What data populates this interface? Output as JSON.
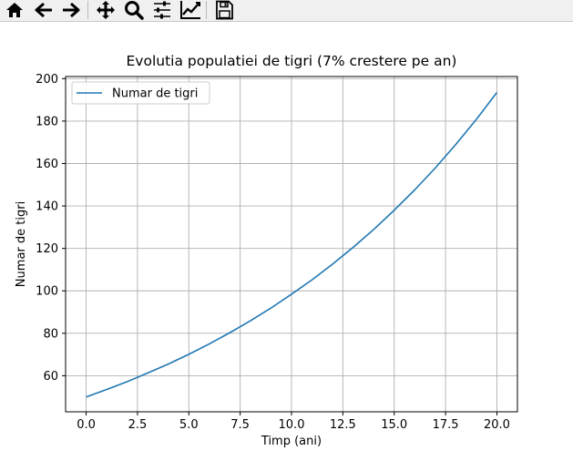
{
  "toolbar": {
    "buttons": [
      {
        "name": "home-icon",
        "label": "Home"
      },
      {
        "name": "back-icon",
        "label": "Back"
      },
      {
        "name": "forward-icon",
        "label": "Forward"
      },
      {
        "name": "pan-icon",
        "label": "Pan"
      },
      {
        "name": "zoom-icon",
        "label": "Zoom"
      },
      {
        "name": "configure-subplots-icon",
        "label": "Configure subplots"
      },
      {
        "name": "edit-axis-icon",
        "label": "Edit axis"
      },
      {
        "name": "save-icon",
        "label": "Save"
      }
    ]
  },
  "chart_data": {
    "type": "line",
    "title": "Evolutia populatiei de tigri (7% crestere pe an)",
    "xlabel": "Timp (ani)",
    "ylabel": "Numar de tigri",
    "xlim": [
      -1.0,
      21.0
    ],
    "ylim": [
      43,
      201
    ],
    "xticks": [
      0.0,
      2.5,
      5.0,
      7.5,
      10.0,
      12.5,
      15.0,
      17.5,
      20.0
    ],
    "xtick_labels": [
      "0.0",
      "2.5",
      "5.0",
      "7.5",
      "10.0",
      "12.5",
      "15.0",
      "17.5",
      "20.0"
    ],
    "yticks": [
      60,
      80,
      100,
      120,
      140,
      160,
      180,
      200
    ],
    "ytick_labels": [
      "60",
      "80",
      "100",
      "120",
      "140",
      "160",
      "180",
      "200"
    ],
    "grid": true,
    "legend": "upper-left",
    "colors": {
      "line": "#1f77b4",
      "grid": "#b0b0b0",
      "axis": "#000000"
    },
    "series": [
      {
        "name": "Numar de tigri",
        "x": [
          0,
          1,
          2,
          3,
          4,
          5,
          6,
          7,
          8,
          9,
          10,
          11,
          12,
          13,
          14,
          15,
          16,
          17,
          18,
          19,
          20
        ],
        "y": [
          50.0,
          53.5,
          57.2,
          61.3,
          65.5,
          70.1,
          75.0,
          80.3,
          85.9,
          91.9,
          98.4,
          105.2,
          112.6,
          120.5,
          128.9,
          138.0,
          147.6,
          157.9,
          169.0,
          180.8,
          193.5
        ]
      }
    ]
  }
}
